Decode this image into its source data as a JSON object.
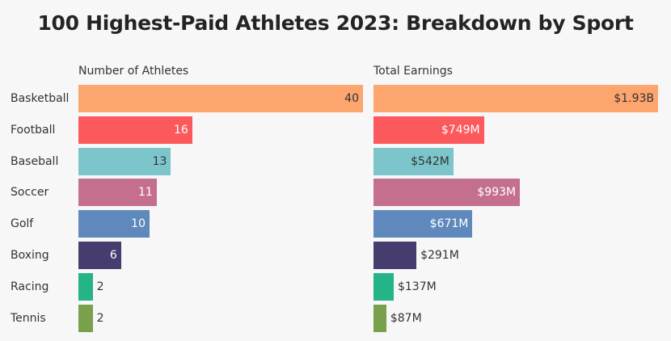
{
  "chart_data": {
    "type": "bar",
    "title": "100 Highest-Paid Athletes 2023: Breakdown by Sport",
    "categories": [
      "Basketball",
      "Football",
      "Baseball",
      "Soccer",
      "Golf",
      "Boxing",
      "Racing",
      "Tennis"
    ],
    "colors": [
      "#fca56e",
      "#fc595d",
      "#7cc6cb",
      "#c56f90",
      "#5f89bd",
      "#473c6e",
      "#25b388",
      "#79a04b"
    ],
    "series": [
      {
        "name": "Number of Athletes",
        "values": [
          40,
          16,
          13,
          11,
          10,
          6,
          2,
          2
        ],
        "labels": [
          "40",
          "16",
          "13",
          "11",
          "10",
          "6",
          "2",
          "2"
        ],
        "xlim": [
          0,
          40
        ]
      },
      {
        "name": "Total Earnings",
        "unit": "USD millions",
        "values": [
          1930,
          749,
          542,
          993,
          671,
          291,
          137,
          87
        ],
        "labels": [
          "$1.93B",
          "$749M",
          "$542M",
          "$993M",
          "$671M",
          "$291M",
          "$137M",
          "$87M"
        ],
        "xlim": [
          0,
          1930
        ]
      }
    ]
  }
}
